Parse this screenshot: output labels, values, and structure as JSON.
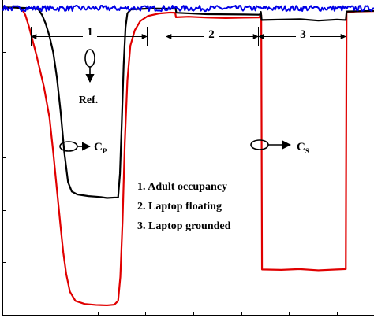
{
  "chart_data": {
    "type": "line",
    "title": "",
    "xlabel": "",
    "ylabel": "",
    "xlim": [
      0,
      100
    ],
    "ylim": [
      0,
      100
    ],
    "grid": false,
    "series": [
      {
        "key": "red",
        "color": "#e00000",
        "points": [
          [
            0,
            98.3
          ],
          [
            3,
            98.3
          ],
          [
            5,
            98.1
          ],
          [
            6,
            96
          ],
          [
            7,
            92
          ],
          [
            9,
            83
          ],
          [
            11,
            73
          ],
          [
            12.5,
            63
          ],
          [
            13.5,
            52
          ],
          [
            14.5,
            40
          ],
          [
            15.5,
            28
          ],
          [
            16.2,
            20
          ],
          [
            17,
            13
          ],
          [
            18,
            7.5
          ],
          [
            19.5,
            4.5
          ],
          [
            22,
            3.4
          ],
          [
            25,
            3.1
          ],
          [
            28,
            3.2
          ],
          [
            30,
            3.2
          ],
          [
            31,
            4.5
          ],
          [
            31.6,
            12
          ],
          [
            32.2,
            30
          ],
          [
            32.8,
            55
          ],
          [
            33.5,
            75
          ],
          [
            34.3,
            86
          ],
          [
            35.5,
            91
          ],
          [
            37,
            94
          ],
          [
            39,
            95.6
          ],
          [
            42,
            96.3
          ],
          [
            45,
            96.6
          ],
          [
            46.4,
            96.7
          ],
          [
            46.6,
            95.3
          ],
          [
            50,
            95.3
          ],
          [
            55,
            95.2
          ],
          [
            60,
            95.1
          ],
          [
            65,
            95.2
          ],
          [
            69,
            95.2
          ],
          [
            69.3,
            95.7
          ],
          [
            69.6,
            95.8
          ],
          [
            69.8,
            14.5
          ],
          [
            75,
            14.3
          ],
          [
            80,
            14.5
          ],
          [
            85,
            14.4
          ],
          [
            90,
            14.6
          ],
          [
            92.4,
            14.6
          ],
          [
            92.6,
            96.7
          ],
          [
            95,
            97.1
          ],
          [
            100,
            97.3
          ]
        ]
      },
      {
        "key": "black",
        "color": "#000000",
        "points": [
          [
            0,
            98.3
          ],
          [
            8,
            98.3
          ],
          [
            9.5,
            97.8
          ],
          [
            10.5,
            96
          ],
          [
            11.5,
            93
          ],
          [
            12.5,
            89
          ],
          [
            13.5,
            84
          ],
          [
            14.5,
            76
          ],
          [
            15.5,
            65
          ],
          [
            16.5,
            52
          ],
          [
            17.5,
            42.5
          ],
          [
            18.5,
            39.5
          ],
          [
            20,
            38.6
          ],
          [
            23,
            38.0
          ],
          [
            26,
            37.7
          ],
          [
            28,
            37.5
          ],
          [
            30,
            37.4
          ],
          [
            31,
            37.6
          ],
          [
            31.5,
            45
          ],
          [
            32,
            62
          ],
          [
            32.5,
            80
          ],
          [
            33,
            92
          ],
          [
            33.5,
            96.5
          ],
          [
            34.5,
            97.7
          ],
          [
            40,
            97.9
          ],
          [
            46.5,
            98.0
          ],
          [
            46.7,
            96.6
          ],
          [
            55,
            96.3
          ],
          [
            65,
            96.1
          ],
          [
            69.2,
            96.1
          ],
          [
            69.5,
            97.0
          ],
          [
            69.7,
            94.4
          ],
          [
            75,
            94.4
          ],
          [
            80,
            94.5
          ],
          [
            85,
            94.3
          ],
          [
            90,
            94.4
          ],
          [
            92.4,
            94.5
          ],
          [
            92.6,
            97.1
          ],
          [
            100,
            97.4
          ]
        ]
      },
      {
        "key": "blue",
        "color": "#0000e6",
        "points": [
          [
            0,
            98.1
          ],
          [
            100,
            98.1
          ]
        ],
        "noise": 0.9
      }
    ],
    "annotations": {
      "region_labels": [
        "1",
        "2",
        "3"
      ],
      "ref": "Ref.",
      "cp_main": "C",
      "cp_sub": "P",
      "cs_main": "C",
      "cs_sub": "S",
      "legend_lines": [
        "1. Adult occupancy",
        "2. Laptop floating",
        "3. Laptop grounded"
      ]
    }
  }
}
